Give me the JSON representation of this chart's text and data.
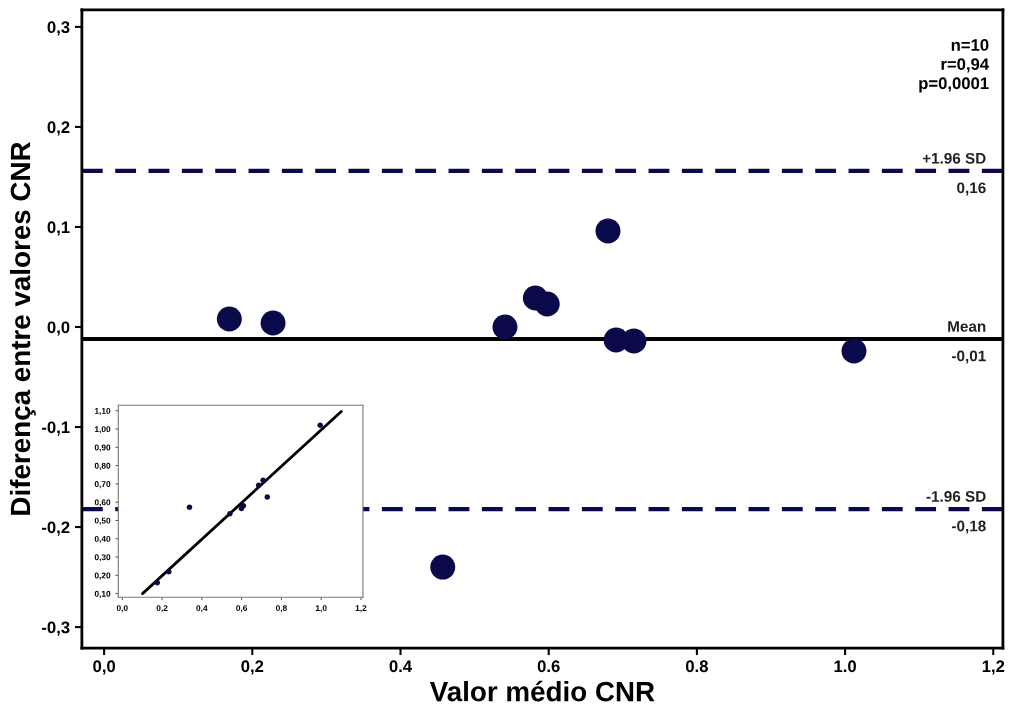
{
  "chart_data": [
    {
      "type": "scatter",
      "xlabel": "Valor médio CNR",
      "ylabel": "Diferença entre valores CNR",
      "series": [
        {
          "color": "#0a0a4a",
          "x": [
            0.169,
            0.228,
            0.541,
            0.582,
            0.598,
            0.68,
            0.691,
            0.715,
            1.012,
            0.457
          ],
          "values": [
            0.008,
            0.004,
            0.0,
            0.029,
            0.023,
            0.096,
            -0.013,
            -0.014,
            -0.024,
            -0.24
          ]
        }
      ],
      "xlim": [
        -0.03,
        1.213
      ],
      "ylim": [
        -0.321,
        0.317
      ],
      "xticks": [
        {
          "value": 0,
          "label": "0,0"
        },
        {
          "value": 0.2,
          "label": "0,2"
        },
        {
          "value": 0.4,
          "label": "0.4"
        },
        {
          "value": 0.6,
          "label": "0.6"
        },
        {
          "value": 0.8,
          "label": "0.8"
        },
        {
          "value": 1.0,
          "label": "1.0"
        },
        {
          "value": 1.2,
          "label": "1,2"
        }
      ],
      "yticks": [
        {
          "value": -0.3,
          "label": "-0,3"
        },
        {
          "value": -0.2,
          "label": "-0,2"
        },
        {
          "value": -0.1,
          "label": "-0,1"
        },
        {
          "value": 0,
          "label": "0,0"
        },
        {
          "value": 0.1,
          "label": "0,1"
        },
        {
          "value": 0.2,
          "label": "0,2"
        },
        {
          "value": 0.3,
          "label": "0,3"
        }
      ],
      "ref_lines": [
        {
          "axis": "y",
          "value": 0.156,
          "label": "+1.96 SD",
          "color": "#0a0a4a",
          "line_style": "dashed"
        },
        {
          "axis": "y",
          "value": -0.012,
          "label": "Mean",
          "color": "#000000",
          "line_style": "solid"
        },
        {
          "axis": "y",
          "value": -0.182,
          "label": "-1.96 SD",
          "color": "#0a0a4a",
          "line_style": "dashed"
        }
      ],
      "annotations": [
        "n=10\nr=0,94\np=0,0001",
        {
          "text": "0,16",
          "y": 0.156
        },
        {
          "text": "-0,01",
          "y": -0.012
        },
        {
          "text": "-0,18",
          "y": -0.182
        }
      ],
      "marker": "circle",
      "grid": false,
      "legend": false
    },
    {
      "type": "scatter",
      "series": [
        {
          "color": "#0a0a4a",
          "x": [
            0.176,
            0.234,
            0.338,
            0.541,
            0.599,
            0.609,
            0.686,
            0.708,
            0.729,
            0.995
          ],
          "values": [
            0.159,
            0.22,
            0.572,
            0.537,
            0.565,
            0.58,
            0.693,
            0.72,
            0.628,
            1.021
          ]
        },
        {
          "type": "line",
          "marker": "none",
          "color": "#000000",
          "x": [
            0.102,
            1.101
          ],
          "values": [
            0.1,
            1.096
          ]
        }
      ],
      "xlim": [
        -0.02,
        1.21
      ],
      "ylim": [
        0.08,
        1.13
      ],
      "xticks": [
        {
          "value": 0,
          "label": "0,0"
        },
        {
          "value": 0.2,
          "label": "0,2"
        },
        {
          "value": 0.4,
          "label": "0,4"
        },
        {
          "value": 0.6,
          "label": "0,6"
        },
        {
          "value": 0.8,
          "label": "0,8"
        },
        {
          "value": 1.0,
          "label": "1,0"
        },
        {
          "value": 1.2,
          "label": "1,2"
        }
      ],
      "yticks": [
        {
          "value": 0.1,
          "label": "0,10"
        },
        {
          "value": 0.2,
          "label": "0,20"
        },
        {
          "value": 0.3,
          "label": "0,30"
        },
        {
          "value": 0.4,
          "label": "0,40"
        },
        {
          "value": 0.5,
          "label": "0,50"
        },
        {
          "value": 0.6,
          "label": "0,60"
        },
        {
          "value": 0.7,
          "label": "0,70"
        },
        {
          "value": 0.8,
          "label": "0,80"
        },
        {
          "value": 0.9,
          "label": "0,90"
        },
        {
          "value": 1.0,
          "label": "1,00"
        },
        {
          "value": 1.1,
          "label": "1,10"
        }
      ],
      "marker": "circle",
      "grid": false,
      "legend": false
    }
  ]
}
